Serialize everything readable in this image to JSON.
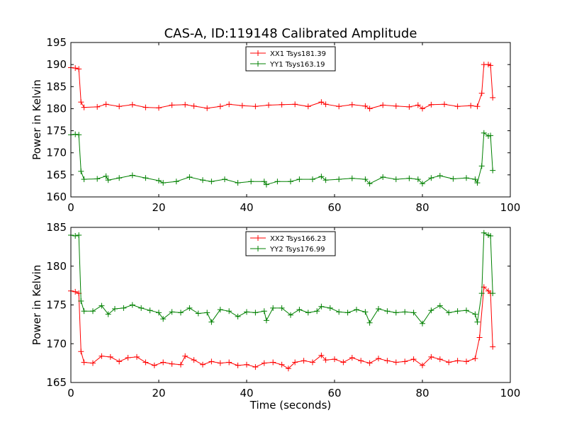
{
  "title": "CAS-A, ID:119148 Calibrated Amplitude",
  "chart_data": [
    {
      "type": "line",
      "ylabel": "Power in Kelvin",
      "xlabel": "",
      "xlim": [
        0,
        100
      ],
      "ylim": [
        160,
        195
      ],
      "xticks": [
        0,
        20,
        40,
        60,
        80,
        100
      ],
      "yticks": [
        160,
        165,
        170,
        175,
        180,
        185,
        190,
        195
      ],
      "legend_position": "top-center",
      "series": [
        {
          "name": "XX1 Tsys181.39",
          "color": "#ff0000",
          "points": [
            [
              0,
              189.3
            ],
            [
              1,
              189.2
            ],
            [
              1.8,
              189.0
            ],
            [
              2.3,
              181.5
            ],
            [
              3,
              180.3
            ],
            [
              6,
              180.4
            ],
            [
              8,
              181.0
            ],
            [
              11,
              180.5
            ],
            [
              14,
              180.9
            ],
            [
              17,
              180.3
            ],
            [
              20,
              180.2
            ],
            [
              23,
              180.8
            ],
            [
              26,
              180.9
            ],
            [
              28,
              180.6
            ],
            [
              31,
              180.1
            ],
            [
              34,
              180.5
            ],
            [
              36,
              181.0
            ],
            [
              39,
              180.7
            ],
            [
              42,
              180.5
            ],
            [
              45,
              180.8
            ],
            [
              48,
              180.9
            ],
            [
              51,
              181.0
            ],
            [
              54,
              180.5
            ],
            [
              57,
              181.5
            ],
            [
              58,
              181.0
            ],
            [
              61,
              180.5
            ],
            [
              64,
              180.9
            ],
            [
              67,
              180.6
            ],
            [
              68,
              180.0
            ],
            [
              71,
              180.8
            ],
            [
              74,
              180.6
            ],
            [
              77,
              180.4
            ],
            [
              79,
              180.8
            ],
            [
              80,
              180.0
            ],
            [
              82,
              180.9
            ],
            [
              85,
              181.0
            ],
            [
              88,
              180.5
            ],
            [
              91,
              180.7
            ],
            [
              92.5,
              180.5
            ],
            [
              93.5,
              183.5
            ],
            [
              94,
              190.0
            ],
            [
              95,
              190.0
            ],
            [
              95.5,
              189.8
            ],
            [
              96,
              182.5
            ]
          ]
        },
        {
          "name": "YY1 Tsys163.19",
          "color": "#008000",
          "points": [
            [
              0,
              174.1
            ],
            [
              1,
              174.2
            ],
            [
              1.8,
              174.1
            ],
            [
              2.3,
              165.8
            ],
            [
              3,
              164.0
            ],
            [
              6,
              164.1
            ],
            [
              8,
              164.7
            ],
            [
              8.5,
              163.8
            ],
            [
              11,
              164.3
            ],
            [
              14,
              164.9
            ],
            [
              17,
              164.3
            ],
            [
              20,
              163.7
            ],
            [
              21,
              163.2
            ],
            [
              24,
              163.5
            ],
            [
              27,
              164.5
            ],
            [
              30,
              163.8
            ],
            [
              32,
              163.5
            ],
            [
              35,
              164.0
            ],
            [
              38,
              163.2
            ],
            [
              41,
              163.5
            ],
            [
              44,
              163.5
            ],
            [
              44.5,
              162.8
            ],
            [
              47,
              163.5
            ],
            [
              50,
              163.5
            ],
            [
              52,
              164.0
            ],
            [
              55,
              164.0
            ],
            [
              57,
              164.6
            ],
            [
              58,
              163.8
            ],
            [
              61,
              164.0
            ],
            [
              64,
              164.2
            ],
            [
              67,
              164.0
            ],
            [
              68,
              163.0
            ],
            [
              71,
              164.5
            ],
            [
              74,
              164.0
            ],
            [
              77,
              164.2
            ],
            [
              79,
              164.0
            ],
            [
              80,
              163.0
            ],
            [
              82,
              164.3
            ],
            [
              84,
              164.8
            ],
            [
              87,
              164.1
            ],
            [
              90,
              164.3
            ],
            [
              92,
              164.0
            ],
            [
              92.5,
              163.2
            ],
            [
              93.5,
              167.0
            ],
            [
              94,
              174.5
            ],
            [
              95,
              173.8
            ],
            [
              95.5,
              173.9
            ],
            [
              96,
              166.0
            ]
          ]
        }
      ]
    },
    {
      "type": "line",
      "ylabel": "Power in Kelvin",
      "xlabel": "Time (seconds)",
      "xlim": [
        0,
        100
      ],
      "ylim": [
        165,
        185
      ],
      "xticks": [
        0,
        20,
        40,
        60,
        80,
        100
      ],
      "yticks": [
        165,
        170,
        175,
        180,
        185
      ],
      "legend_position": "top-center",
      "series": [
        {
          "name": "XX2 Tsys166.23",
          "color": "#ff0000",
          "points": [
            [
              0,
              176.8
            ],
            [
              1,
              176.7
            ],
            [
              1.8,
              176.5
            ],
            [
              2.3,
              169.0
            ],
            [
              3,
              167.6
            ],
            [
              5,
              167.5
            ],
            [
              7,
              168.4
            ],
            [
              9,
              168.3
            ],
            [
              11,
              167.7
            ],
            [
              13,
              168.2
            ],
            [
              15,
              168.3
            ],
            [
              17,
              167.6
            ],
            [
              19,
              167.2
            ],
            [
              21,
              167.6
            ],
            [
              23,
              167.4
            ],
            [
              25,
              167.3
            ],
            [
              26,
              168.4
            ],
            [
              28,
              167.9
            ],
            [
              30,
              167.3
            ],
            [
              32,
              167.7
            ],
            [
              34,
              167.5
            ],
            [
              36,
              167.6
            ],
            [
              38,
              167.2
            ],
            [
              40,
              167.3
            ],
            [
              42,
              167.0
            ],
            [
              44,
              167.5
            ],
            [
              46,
              167.6
            ],
            [
              48,
              167.3
            ],
            [
              49.5,
              166.8
            ],
            [
              51,
              167.6
            ],
            [
              53,
              167.8
            ],
            [
              55,
              167.6
            ],
            [
              57,
              168.5
            ],
            [
              58,
              167.9
            ],
            [
              60,
              168.0
            ],
            [
              62,
              167.6
            ],
            [
              64,
              168.2
            ],
            [
              66,
              167.8
            ],
            [
              68,
              167.5
            ],
            [
              70,
              168.1
            ],
            [
              72,
              167.8
            ],
            [
              74,
              167.6
            ],
            [
              76,
              167.7
            ],
            [
              78,
              168.0
            ],
            [
              80,
              167.2
            ],
            [
              82,
              168.3
            ],
            [
              84,
              168.0
            ],
            [
              86,
              167.6
            ],
            [
              88,
              167.8
            ],
            [
              90,
              167.7
            ],
            [
              92,
              168.1
            ],
            [
              93,
              170.8
            ],
            [
              94,
              177.3
            ],
            [
              95,
              176.8
            ],
            [
              95.5,
              176.5
            ],
            [
              96,
              169.6
            ]
          ]
        },
        {
          "name": "YY2 Tsys176.99",
          "color": "#008000",
          "points": [
            [
              0,
              184.0
            ],
            [
              1,
              183.9
            ],
            [
              1.8,
              184.0
            ],
            [
              2.3,
              175.5
            ],
            [
              3,
              174.2
            ],
            [
              5,
              174.2
            ],
            [
              7,
              174.9
            ],
            [
              8.5,
              173.8
            ],
            [
              10,
              174.5
            ],
            [
              12,
              174.6
            ],
            [
              14,
              175.0
            ],
            [
              16,
              174.6
            ],
            [
              18,
              174.3
            ],
            [
              20,
              174.0
            ],
            [
              21,
              173.2
            ],
            [
              23,
              174.1
            ],
            [
              25,
              174.0
            ],
            [
              27,
              174.6
            ],
            [
              29,
              173.9
            ],
            [
              31,
              174.0
            ],
            [
              32,
              172.8
            ],
            [
              34,
              174.4
            ],
            [
              36,
              174.2
            ],
            [
              38,
              173.5
            ],
            [
              40,
              174.1
            ],
            [
              42,
              174.0
            ],
            [
              44,
              174.2
            ],
            [
              44.5,
              173.0
            ],
            [
              46,
              174.6
            ],
            [
              48,
              174.6
            ],
            [
              50,
              173.7
            ],
            [
              52,
              174.4
            ],
            [
              54,
              174.0
            ],
            [
              56,
              174.2
            ],
            [
              57,
              174.8
            ],
            [
              59,
              174.6
            ],
            [
              61,
              174.1
            ],
            [
              63,
              174.0
            ],
            [
              65,
              174.4
            ],
            [
              67,
              174.1
            ],
            [
              68,
              172.7
            ],
            [
              70,
              174.5
            ],
            [
              72,
              174.2
            ],
            [
              74,
              174.0
            ],
            [
              76,
              174.1
            ],
            [
              78,
              174.0
            ],
            [
              80,
              172.6
            ],
            [
              82,
              174.3
            ],
            [
              84,
              174.9
            ],
            [
              86,
              174.0
            ],
            [
              88,
              174.2
            ],
            [
              90,
              174.3
            ],
            [
              92,
              173.8
            ],
            [
              92.5,
              172.8
            ],
            [
              93.5,
              176.5
            ],
            [
              94,
              184.3
            ],
            [
              95,
              184.0
            ],
            [
              95.5,
              183.9
            ],
            [
              96,
              176.5
            ]
          ]
        }
      ]
    }
  ]
}
